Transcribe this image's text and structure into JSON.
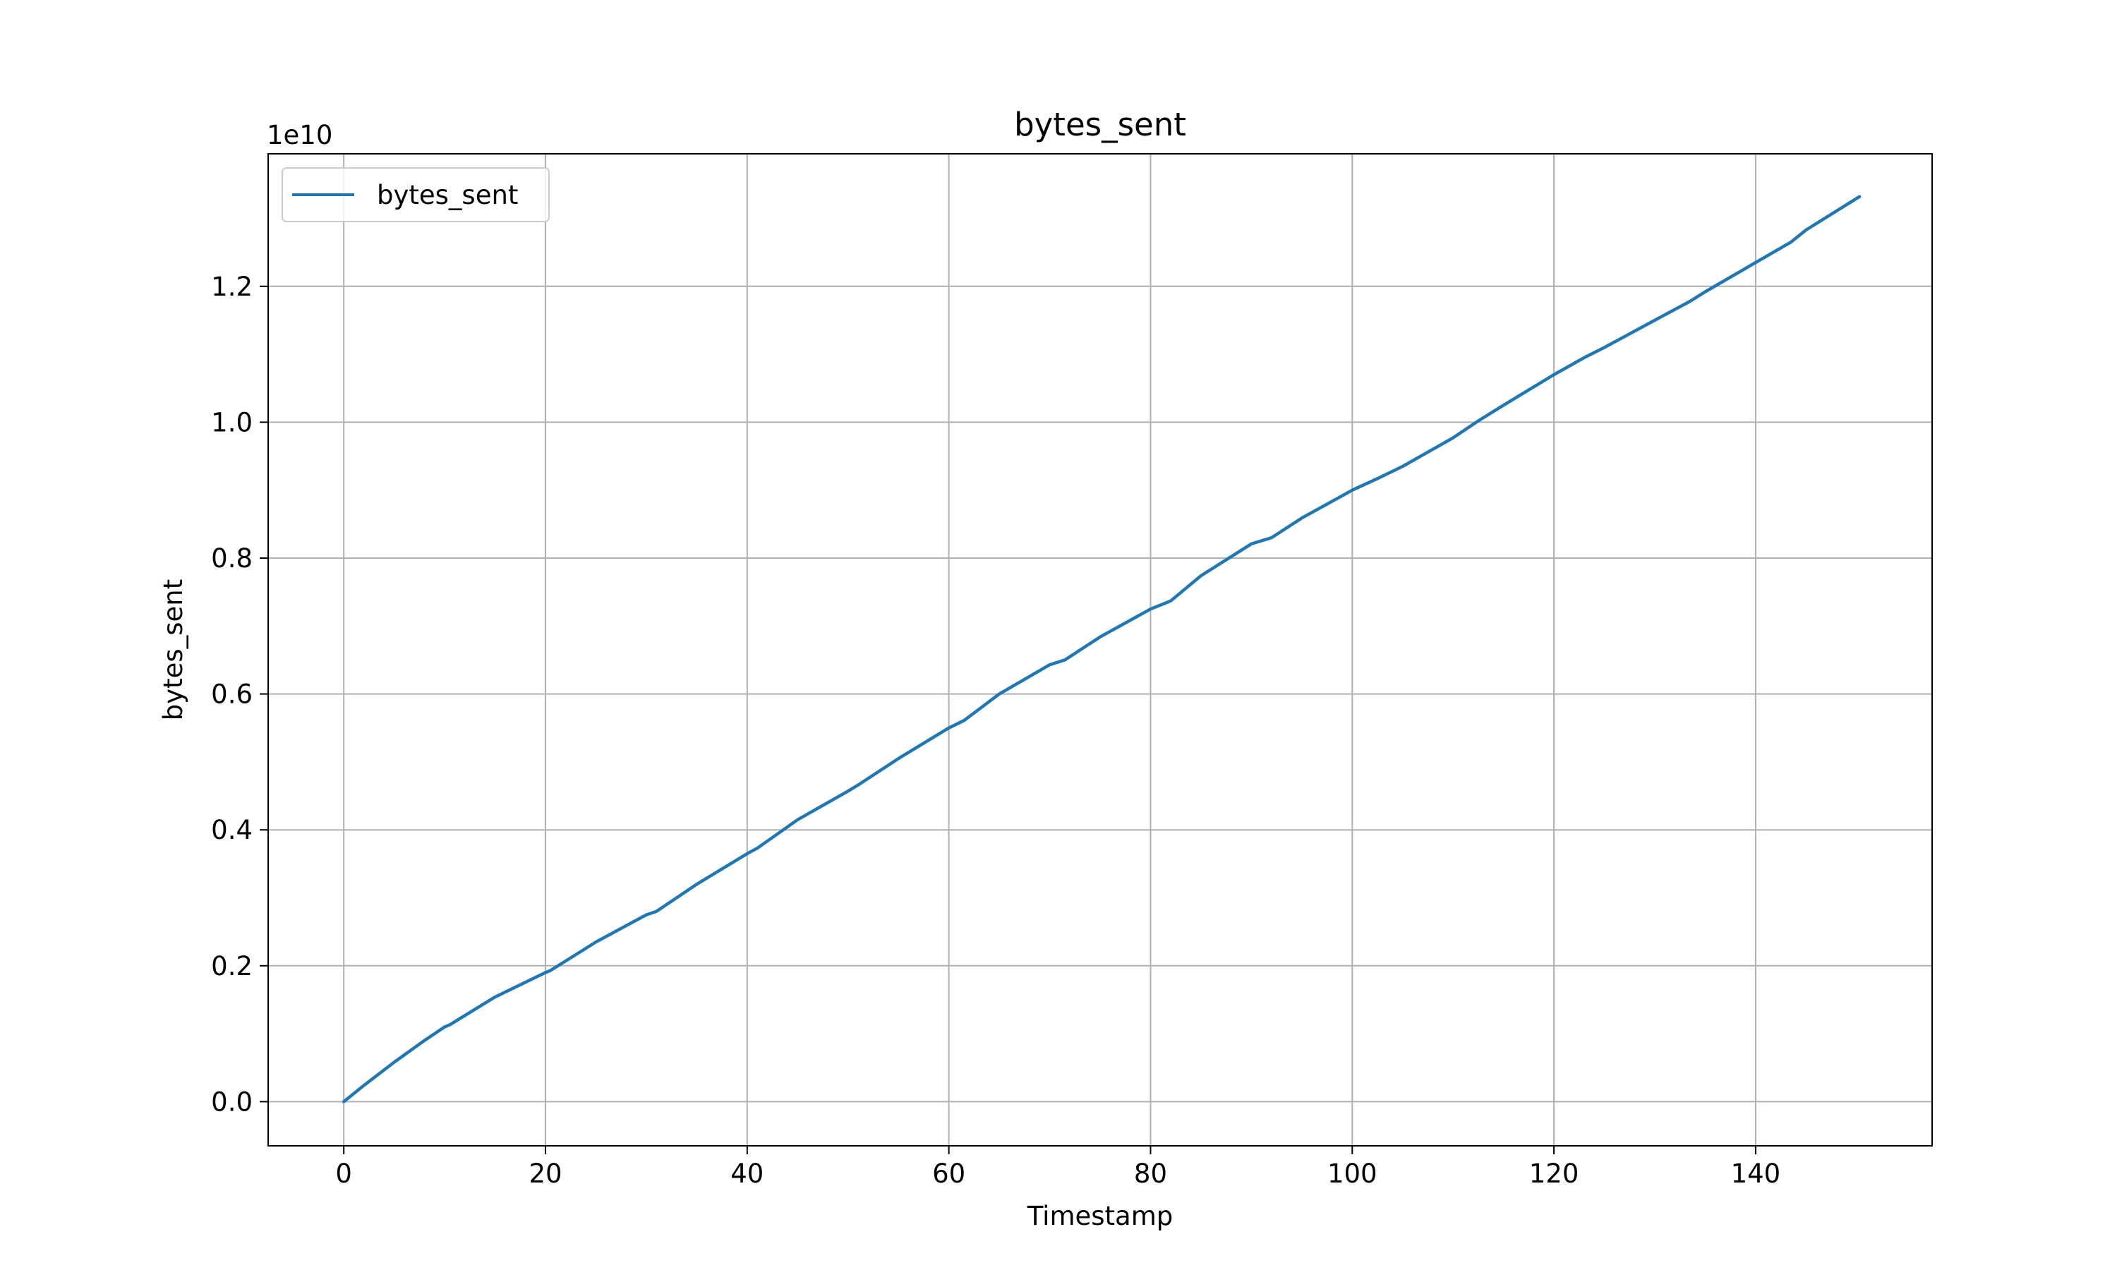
{
  "chart_data": {
    "type": "line",
    "title": "bytes_sent",
    "xlabel": "Timestamp",
    "ylabel": "bytes_sent",
    "y_offset_label": "1e10",
    "xlim": [
      -7.5,
      157.5
    ],
    "ylim": [
      -0.065,
      1.395
    ],
    "y_scale_note": "y values in units of 1e10",
    "x_ticks": [
      0,
      20,
      40,
      60,
      80,
      100,
      120,
      140
    ],
    "x_tick_labels": [
      "0",
      "20",
      "40",
      "60",
      "80",
      "100",
      "120",
      "140"
    ],
    "y_ticks": [
      0.0,
      0.2,
      0.4,
      0.6,
      0.8,
      1.0,
      1.2
    ],
    "y_tick_labels": [
      "0.0",
      "0.2",
      "0.4",
      "0.6",
      "0.8",
      "1.0",
      "1.2"
    ],
    "grid": true,
    "legend_position": "top-left",
    "series": [
      {
        "name": "bytes_sent",
        "color": "#1f77b4",
        "x": [
          0,
          2,
          5,
          8,
          10,
          10.5,
          15,
          20,
          20.5,
          25,
          30,
          31,
          35,
          40,
          41,
          45,
          50,
          51,
          55,
          60,
          61.5,
          65,
          70,
          71.5,
          75,
          80,
          82,
          85,
          90,
          92,
          95,
          100,
          102.5,
          105,
          110,
          112.5,
          115,
          120,
          123,
          125,
          130,
          133.5,
          135,
          140,
          143.5,
          145,
          150.3
        ],
        "y": [
          0.0,
          0.024,
          0.058,
          0.09,
          0.11,
          0.113,
          0.154,
          0.19,
          0.193,
          0.235,
          0.275,
          0.28,
          0.32,
          0.365,
          0.373,
          0.415,
          0.457,
          0.466,
          0.505,
          0.55,
          0.561,
          0.6,
          0.643,
          0.65,
          0.684,
          0.725,
          0.737,
          0.774,
          0.821,
          0.83,
          0.859,
          0.9,
          0.917,
          0.935,
          0.977,
          1.002,
          1.025,
          1.07,
          1.095,
          1.11,
          1.15,
          1.178,
          1.192,
          1.235,
          1.265,
          1.283,
          1.332
        ]
      }
    ]
  }
}
